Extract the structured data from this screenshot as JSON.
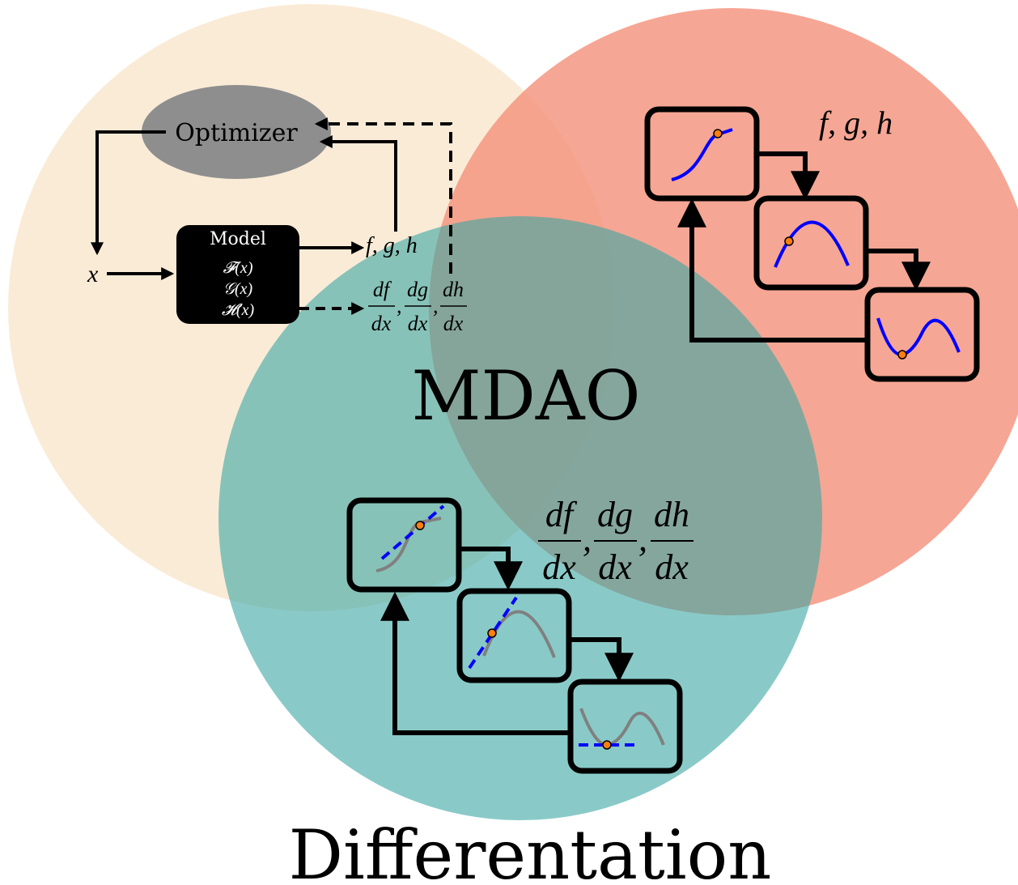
{
  "colors": {
    "optimization_circle": "#F8E3C8",
    "analysis_circle": "#F4937C",
    "differentiation_circle": "#3AA6A4",
    "optimizer_ellipse": "#8E8E8E",
    "model_box": "#000000",
    "curve_blue": "#0000FF",
    "curve_gray": "#808080",
    "point_orange": "#FF7F0E"
  },
  "labels": {
    "center": "MDAO",
    "bottom": "Differentation"
  },
  "workflow": {
    "optimizer": "Optimizer",
    "model_title": "Model",
    "model_lines": [
      "𝓕(x)",
      "𝒢(x)",
      "𝓗(x)"
    ],
    "input": "x",
    "outputs": "f, g, h",
    "derivative_numerators": [
      "df",
      "dg",
      "dh"
    ],
    "derivative_denominators": [
      "dx",
      "dx",
      "dx"
    ]
  },
  "analysis": {
    "outputs": "f, g, h"
  },
  "differentiation": {
    "derivative_numerators": [
      "df",
      "dg",
      "dh"
    ],
    "derivative_denominators": [
      "dx",
      "dx",
      "dx"
    ]
  },
  "icons": [
    "arrow-icon",
    "dashed-arrow-icon",
    "sigmoid-curve-icon",
    "parabola-curve-icon",
    "sine-curve-icon",
    "tangent-line-icon"
  ]
}
